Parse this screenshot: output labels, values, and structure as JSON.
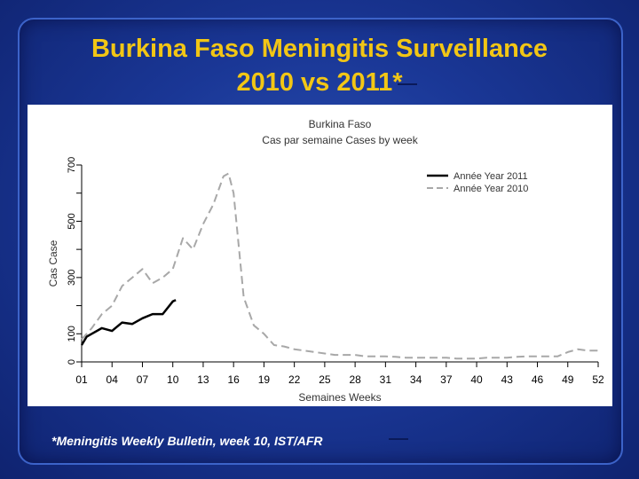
{
  "slide": {
    "title_line1": "Burkina Faso Meningitis Surveillance",
    "title_line2": "2010 vs 2011*",
    "footnote": "*Meningitis Weekly Bulletin, week 10, IST/AFR"
  },
  "colors": {
    "title": "#f2c615",
    "background": "#1a3796",
    "series_2011": "#000000",
    "series_2010": "#a8a8a8"
  },
  "chart_data": {
    "type": "line",
    "title": "Burkina Faso",
    "subtitle": "Cas par semaine Cases by week",
    "xlabel": "Semaines Weeks",
    "ylabel": "Cas Case",
    "xlim": [
      1,
      52
    ],
    "ylim": [
      0,
      700
    ],
    "x_ticks": [
      "01",
      "04",
      "07",
      "10",
      "13",
      "16",
      "19",
      "22",
      "25",
      "28",
      "31",
      "34",
      "37",
      "40",
      "43",
      "46",
      "49",
      "52"
    ],
    "y_ticks": [
      "0",
      "100",
      "300",
      "500",
      "700"
    ],
    "grid": false,
    "legend_position": "top-right",
    "series": [
      {
        "name": "Année Year 2011",
        "style": "solid",
        "x": [
          1,
          1.5,
          2,
          3,
          4,
          5,
          6,
          7,
          8,
          9,
          10,
          10.3
        ],
        "y": [
          60,
          90,
          100,
          120,
          110,
          140,
          135,
          155,
          170,
          170,
          215,
          220
        ]
      },
      {
        "name": "Année Year 2010",
        "style": "dashed",
        "x": [
          1,
          2,
          3,
          4,
          5,
          6,
          7,
          8,
          9,
          10,
          11,
          12,
          13,
          14,
          15,
          15.5,
          16,
          17,
          18,
          19,
          20,
          21,
          22,
          23,
          24,
          25,
          26,
          27,
          28,
          29,
          30,
          31,
          32,
          33,
          34,
          35,
          36,
          37,
          38,
          39,
          40,
          41,
          42,
          43,
          44,
          45,
          46,
          47,
          48,
          49,
          50,
          51,
          52
        ],
        "y": [
          80,
          120,
          170,
          200,
          270,
          300,
          330,
          280,
          300,
          330,
          440,
          400,
          490,
          560,
          660,
          670,
          600,
          230,
          130,
          100,
          60,
          55,
          45,
          40,
          35,
          30,
          25,
          25,
          25,
          20,
          20,
          20,
          18,
          15,
          15,
          15,
          15,
          15,
          12,
          12,
          12,
          15,
          15,
          15,
          18,
          20,
          20,
          20,
          20,
          35,
          45,
          40,
          40
        ]
      }
    ]
  }
}
